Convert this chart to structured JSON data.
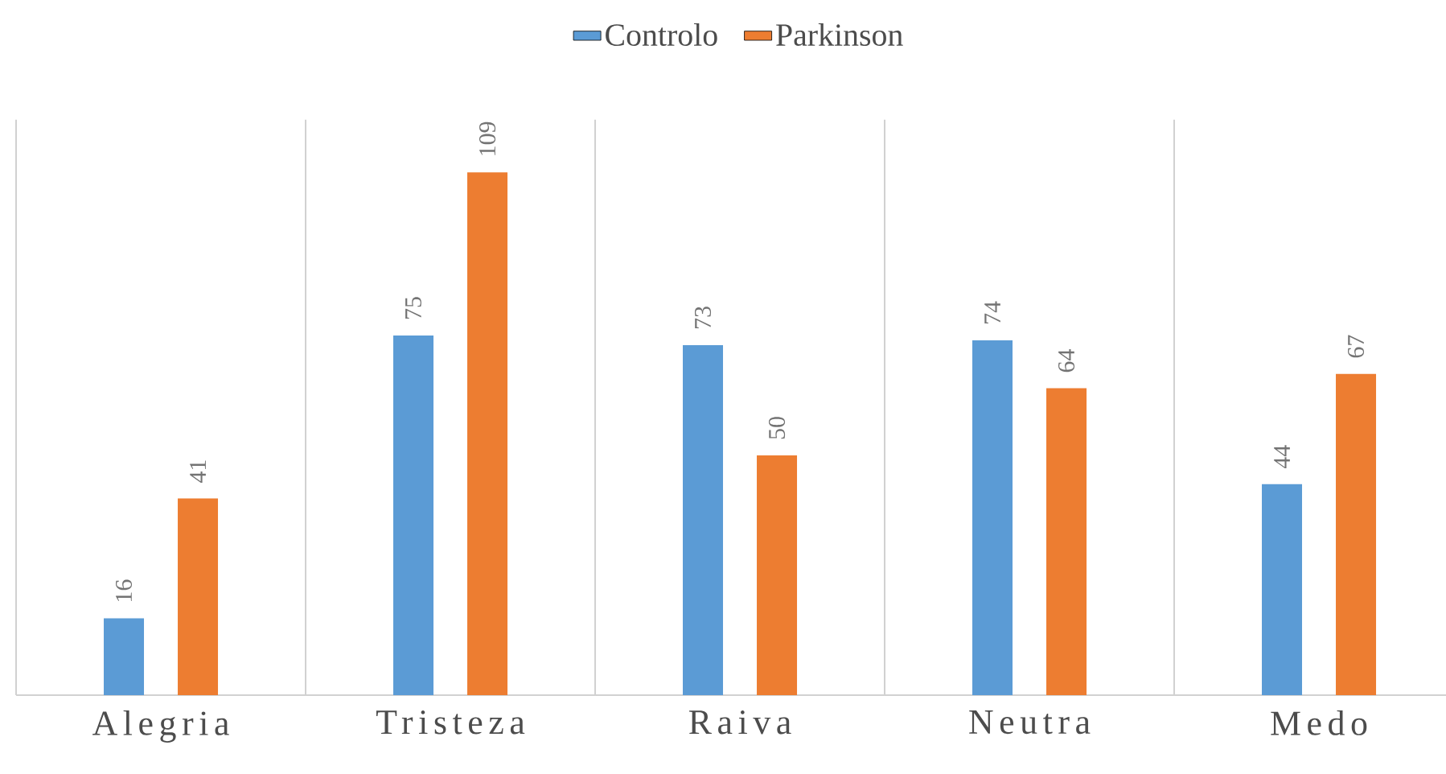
{
  "chart_data": {
    "type": "bar",
    "categories": [
      "Alegria",
      "Tristeza",
      "Raiva",
      "Neutra",
      "Medo"
    ],
    "series": [
      {
        "name": "Controlo",
        "color": "#5b9bd5",
        "values": [
          16,
          75,
          73,
          74,
          44
        ]
      },
      {
        "name": "Parkinson",
        "color": "#ed7d31",
        "values": [
          41,
          109,
          50,
          64,
          67
        ]
      }
    ],
    "ylim": [
      0,
      120
    ],
    "data_labels": true,
    "grid": "x",
    "legend": "top"
  }
}
